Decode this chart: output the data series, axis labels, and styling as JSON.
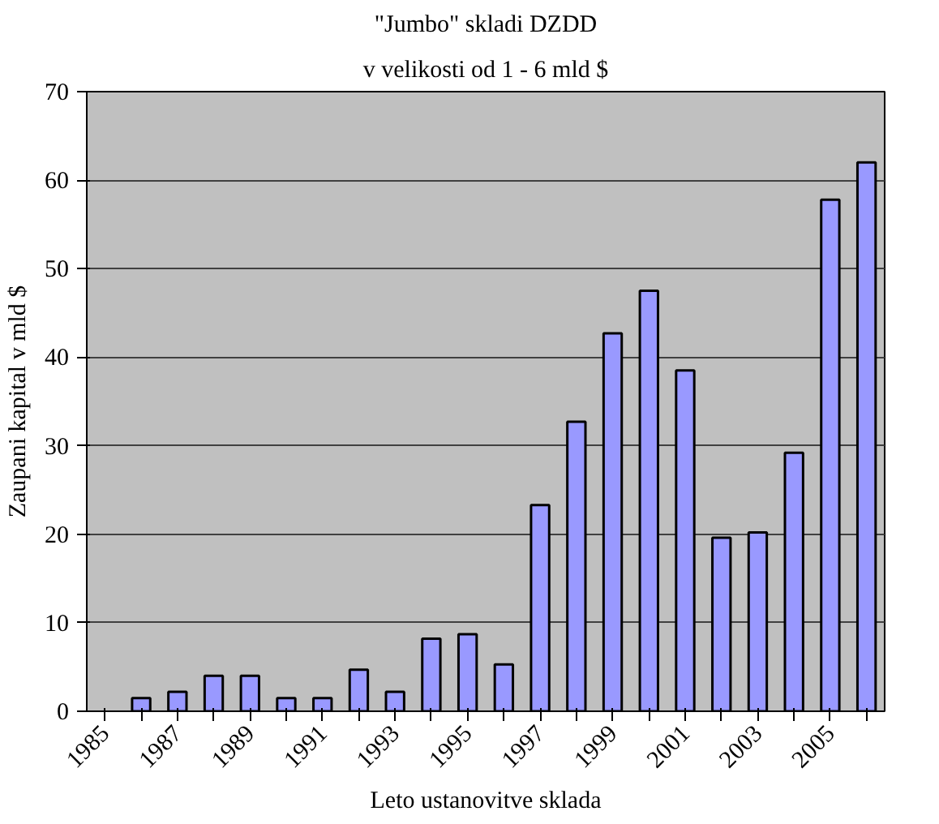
{
  "chart_data": {
    "type": "bar",
    "title": "\"Jumbo\" skladi DZDD",
    "subtitle": "v velikosti od 1 - 6 mld $",
    "xlabel": "Leto ustanovitve sklada",
    "ylabel": "Zaupani kapital v mld $",
    "categories": [
      "1985",
      null,
      "1987",
      null,
      "1989",
      null,
      "1991",
      null,
      "1993",
      null,
      "1995",
      null,
      "1997",
      null,
      "1999",
      null,
      "2001",
      null,
      "2003",
      null,
      "2005",
      null
    ],
    "values": [
      null,
      1.5,
      2.2,
      4,
      4,
      1.5,
      1.5,
      4.7,
      2.2,
      8.2,
      8.7,
      5.3,
      23.3,
      32.7,
      42.7,
      47.5,
      38.5,
      19.6,
      20.2,
      29.2,
      57.8,
      62
    ],
    "color": "#9999ff",
    "ylim": [
      0,
      70
    ],
    "yticks": [
      0,
      10,
      20,
      30,
      40,
      50,
      60,
      70
    ],
    "grid": "y"
  }
}
